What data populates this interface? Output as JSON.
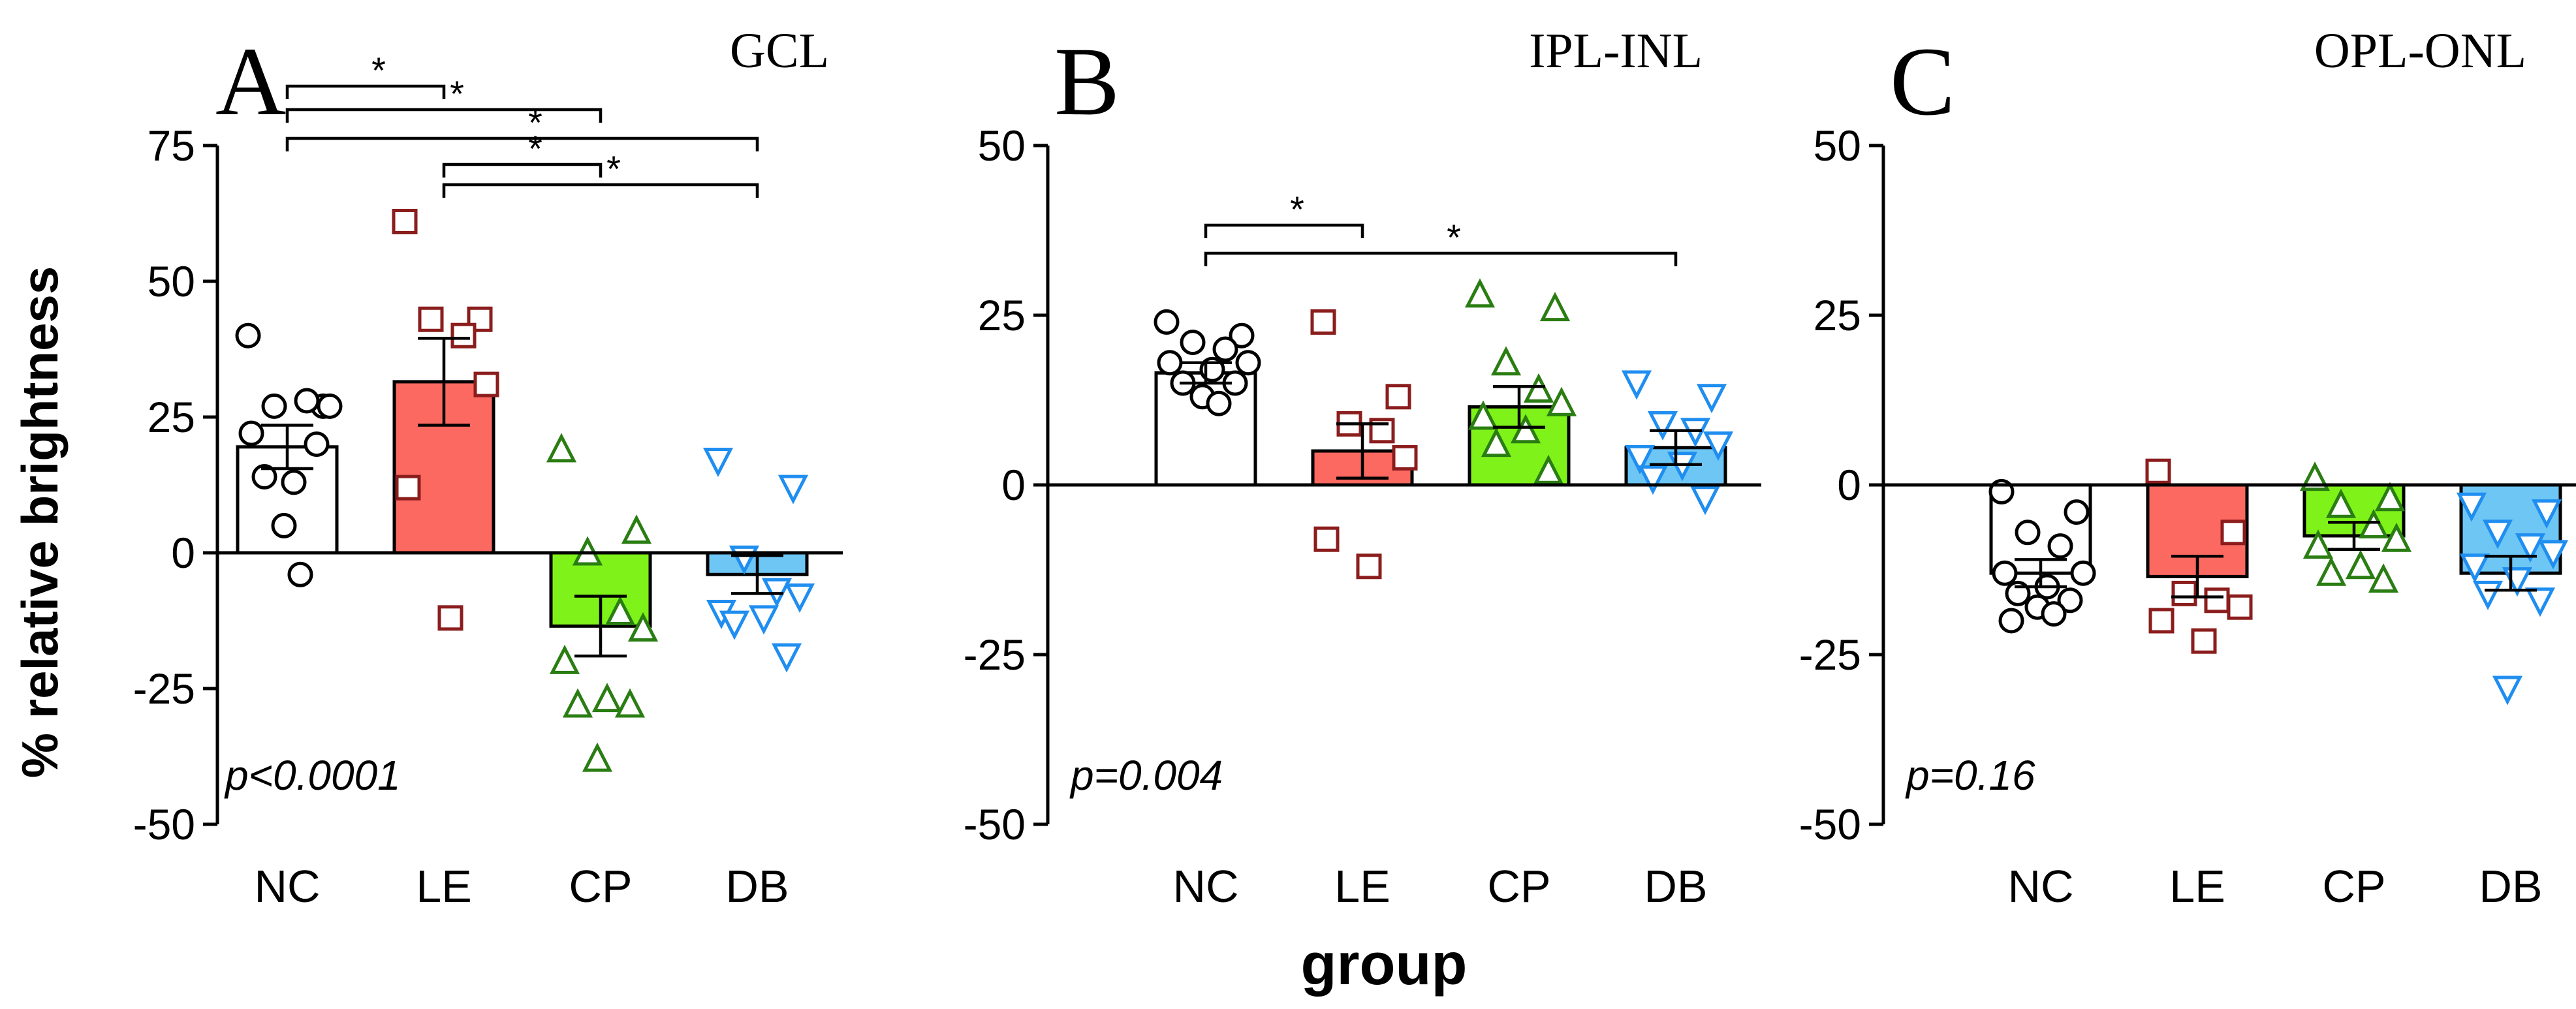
{
  "chart_data": [
    {
      "type": "bar",
      "panel": "A",
      "title": "GCL",
      "p_value": "p<0.0001",
      "ylabel": "% relative brightness",
      "xlabel": "",
      "ylim": [
        -50,
        75
      ],
      "yticks": [
        75,
        50,
        25,
        0,
        -25,
        -50
      ],
      "ytick_labels": [
        "75",
        "50",
        "25",
        "0",
        "-25",
        "-50"
      ],
      "categories": [
        "NC",
        "LE",
        "CP",
        "DB"
      ],
      "values": [
        19.5,
        31.5,
        -13.5,
        -4
      ],
      "errors": [
        4,
        8,
        5.5,
        3.5
      ],
      "points": [
        [
          40,
          27,
          27,
          28,
          27,
          22,
          13,
          14,
          20,
          5,
          -4
        ],
        [
          61,
          43,
          43,
          40,
          31,
          12,
          -12
        ],
        [
          19,
          4,
          0,
          -11,
          -14,
          -20,
          -27,
          -28,
          -28,
          -38
        ],
        [
          17,
          12,
          -1,
          -7,
          -8,
          -11,
          -12,
          -13,
          -19
        ]
      ],
      "significance": [
        {
          "from": "NC",
          "to": "LE",
          "label": "*"
        },
        {
          "from": "NC",
          "to": "CP",
          "label": "*"
        },
        {
          "from": "NC",
          "to": "DB",
          "label": "*"
        },
        {
          "from": "LE",
          "to": "CP",
          "label": "*"
        },
        {
          "from": "LE",
          "to": "DB",
          "label": "*"
        }
      ]
    },
    {
      "type": "bar",
      "panel": "B",
      "title": "IPL-INL",
      "p_value": "p=0.004",
      "xlabel": "group",
      "ylim": [
        -50,
        50
      ],
      "yticks": [
        50,
        25,
        0,
        -25,
        -50
      ],
      "ytick_labels": [
        "50",
        "25",
        "0",
        "-25",
        "-50"
      ],
      "categories": [
        "NC",
        "LE",
        "CP",
        "DB"
      ],
      "values": [
        16.5,
        5,
        11.5,
        5.5
      ],
      "errors": [
        1.5,
        4,
        3,
        2.5
      ],
      "points": [
        [
          24,
          22,
          21,
          20,
          18,
          18,
          17,
          15,
          15,
          13,
          12
        ],
        [
          24,
          13,
          9,
          8,
          4,
          -8,
          -12
        ],
        [
          28,
          26,
          18,
          14,
          12,
          10,
          8,
          6,
          2
        ],
        [
          15,
          13,
          9,
          8,
          6,
          4,
          3,
          1,
          -2
        ]
      ],
      "significance": [
        {
          "from": "NC",
          "to": "LE",
          "label": "*"
        },
        {
          "from": "NC",
          "to": "DB",
          "label": "*"
        }
      ]
    },
    {
      "type": "bar",
      "panel": "C",
      "title": "OPL-ONL",
      "p_value": "p=0.16",
      "xlabel": "",
      "ylim": [
        -50,
        50
      ],
      "yticks": [
        50,
        25,
        0,
        -25,
        -50
      ],
      "ytick_labels": [
        "50",
        "25",
        "0",
        "-25",
        "-50"
      ],
      "categories": [
        "NC",
        "LE",
        "CP",
        "DB"
      ],
      "values": [
        -13,
        -13.5,
        -7.5,
        -13
      ],
      "errors": [
        2,
        3,
        2,
        2.5
      ],
      "points": [
        [
          -1,
          -4,
          -7,
          -9,
          -13,
          -13,
          -15,
          -16,
          -17,
          -18,
          -19,
          -20
        ],
        [
          2,
          -7,
          -16,
          -17,
          -18,
          -20,
          -23
        ],
        [
          1,
          -2,
          -3,
          -6,
          -8,
          -9,
          -12,
          -13,
          -14
        ],
        [
          -3,
          -4,
          -7,
          -9,
          -10,
          -12,
          -14,
          -16,
          -17,
          -30
        ]
      ],
      "significance": []
    }
  ],
  "styles": {
    "NC": {
      "fill": "#ffffff",
      "stroke": "#000000",
      "marker": "circle"
    },
    "LE": {
      "fill": "#fc6961",
      "stroke": "#8b1d1d",
      "marker": "square"
    },
    "CP": {
      "fill": "#7ff219",
      "stroke": "#2a7d12",
      "marker": "triangle-up"
    },
    "DB": {
      "fill": "#6ec6f4",
      "stroke": "#1f8ef0",
      "marker": "triangle-down"
    }
  }
}
